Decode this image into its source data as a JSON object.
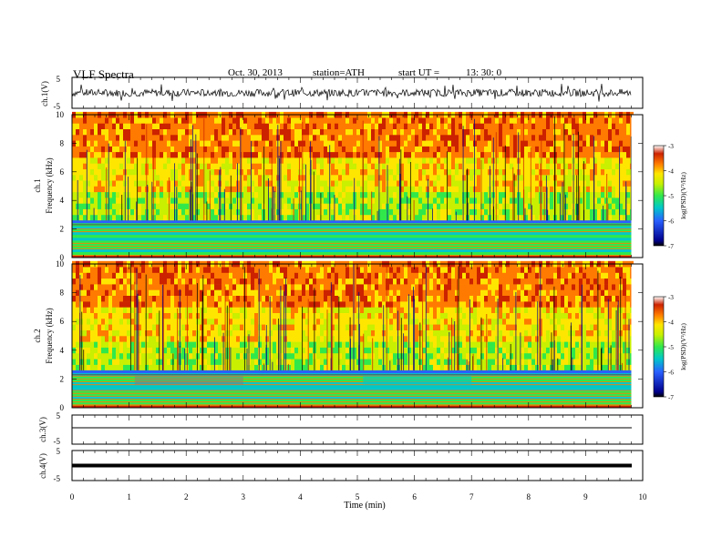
{
  "header": {
    "title": "VLF  Spectra",
    "date": "Oct. 30, 2013",
    "station": "station=ATH",
    "start_label": "start  UT  =",
    "start_time": "13: 30: 0"
  },
  "panels": {
    "ch1_ylabel": "ch.1(V)",
    "ch1_spec_ylabel": "ch.1",
    "ch2_spec_ylabel": "ch.2",
    "freq_label": "Frequency  (kHz)",
    "ch3_ylabel": "ch.3(V)",
    "ch4_ylabel": "ch.4(V)",
    "wave_ticks": [
      "5",
      "-5"
    ],
    "freq_ticks": [
      "0",
      "2",
      "4",
      "6",
      "8",
      "10"
    ]
  },
  "colorbar": {
    "label": "log(PSD)(V²/Hz)",
    "ticks": [
      "-3",
      "-4",
      "-5",
      "-6",
      "-7"
    ]
  },
  "xaxis": {
    "label": "Time  (min)",
    "ticks": [
      "0",
      "1",
      "2",
      "3",
      "4",
      "5",
      "6",
      "7",
      "8",
      "9",
      "10"
    ]
  },
  "colors": {
    "spectrogram_bands": [
      "#cc2200",
      "#ff7a00",
      "#ffe600",
      "#c8f000",
      "#31e84b",
      "#00c8c8",
      "#2a60ff",
      "#00008b",
      "#000000"
    ]
  },
  "chart_data": {
    "type": "heatmap",
    "title": "VLF  Spectra",
    "xlabel": "Time  (min)",
    "x_range": [
      0,
      10
    ],
    "data_end_min": 9.8,
    "freq_ylabel": "Frequency  (kHz)",
    "freq_range_khz": [
      0,
      10
    ],
    "colorbar_range": [
      -7,
      -3
    ],
    "colorbar_label": "log(PSD)(V²/Hz)",
    "channels": [
      {
        "name": "ch.1",
        "waveform_ylim": [
          -5,
          5
        ],
        "spectrogram": true
      },
      {
        "name": "ch.2",
        "spectrogram": true
      },
      {
        "name": "ch.3",
        "waveform_ylim": [
          -5,
          5
        ],
        "waveform_level": -1.5
      },
      {
        "name": "ch.4",
        "waveform_ylim": [
          -5,
          5
        ],
        "waveform_level": 0
      }
    ]
  }
}
